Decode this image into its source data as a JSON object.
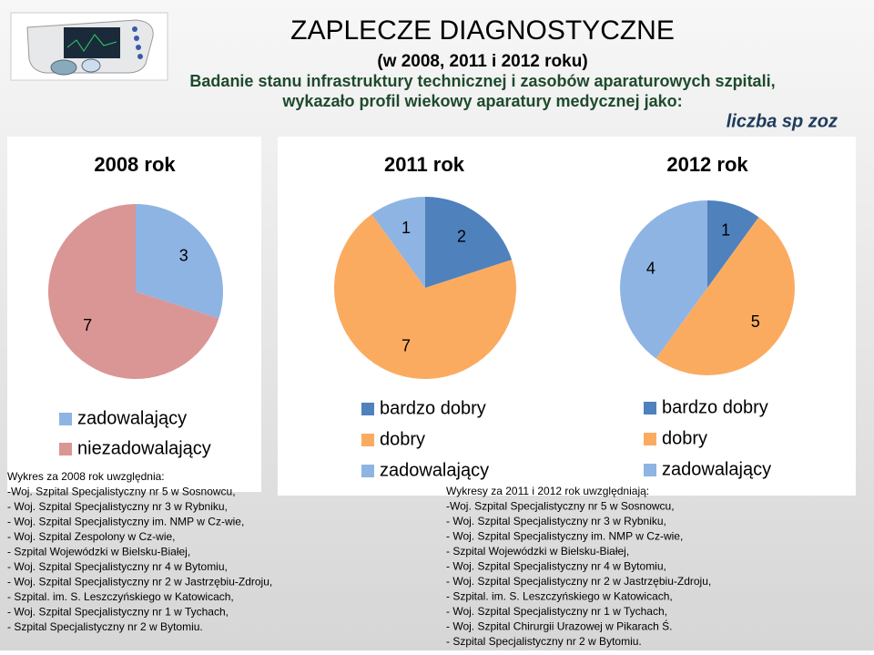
{
  "title": "ZAPLECZE DIAGNOSTYCZNE",
  "subtitle": "(w 2008, 2011 i 2012 roku)",
  "description": [
    "Badanie stanu infrastruktury technicznej i zasobów aparaturowych szpitali,",
    "wykazało profil wiekowy aparatury medycznej jako:"
  ],
  "unit_note": "liczba sp zoz",
  "chart_data": [
    {
      "type": "pie",
      "title": "2008 rok",
      "categories": [
        "zadowalający",
        "niezadowalający"
      ],
      "values": [
        3,
        7
      ],
      "colors": [
        "#8eb4e3",
        "#d99694"
      ]
    },
    {
      "type": "pie",
      "title": "2011 rok",
      "categories": [
        "bardzo dobry",
        "dobry",
        "zadowalający"
      ],
      "values": [
        2,
        7,
        1
      ],
      "colors": [
        "#4f81bd",
        "#fbab60",
        "#8eb4e3"
      ]
    },
    {
      "type": "pie",
      "title": "2012 rok",
      "categories": [
        "bardzo dobry",
        "dobry",
        "zadowalający"
      ],
      "values": [
        1,
        5,
        4
      ],
      "colors": [
        "#4f81bd",
        "#fbab60",
        "#8eb4e3"
      ]
    }
  ],
  "notes": [
    {
      "heading": "Wykres za 2008 rok uwzględnia:",
      "lines": [
        "-Woj. Szpital Specjalistyczny nr 5 w Sosnowcu,",
        "- Woj. Szpital Specjalistyczny nr 3 w Rybniku,",
        "- Woj. Szpital Specjalistyczny im. NMP w Cz-wie,",
        "- Woj. Szpital Zespolony w Cz-wie,",
        "- Szpital Wojewódzki w Bielsku-Białej,",
        "- Woj. Szpital Specjalistyczny nr 4 w Bytomiu,",
        "- Woj. Szpital Specjalistyczny nr 2 w Jastrzębiu-Zdroju,",
        "- Szpital. im. S. Leszczyńskiego w Katowicach,",
        "- Woj. Szpital Specjalistyczny nr 1 w Tychach,",
        "- Szpital Specjalistyczny nr 2 w Bytomiu."
      ]
    },
    {
      "heading": "Wykresy za 2011 i 2012 rok uwzględniają:",
      "lines": [
        "-Woj. Szpital Specjalistyczny nr 5 w Sosnowcu,",
        "- Woj. Szpital Specjalistyczny nr 3 w Rybniku,",
        "- Woj. Szpital Specjalistyczny im. NMP w Cz-wie,",
        "- Szpital Wojewódzki w Bielsku-Białej,",
        "- Woj. Szpital Specjalistyczny nr 4 w Bytomiu,",
        "- Woj. Szpital Specjalistyczny nr 2 w Jastrzębiu-Zdroju,",
        "- Szpital. im. S. Leszczyńskiego w Katowicach,",
        "- Woj. Szpital Specjalistyczny nr 1 w Tychach,",
        "- Woj. Szpital Chirurgii Urazowej w Pikarach Ś.",
        "- Szpital Specjalistyczny nr 2 w Bytomiu."
      ]
    }
  ]
}
